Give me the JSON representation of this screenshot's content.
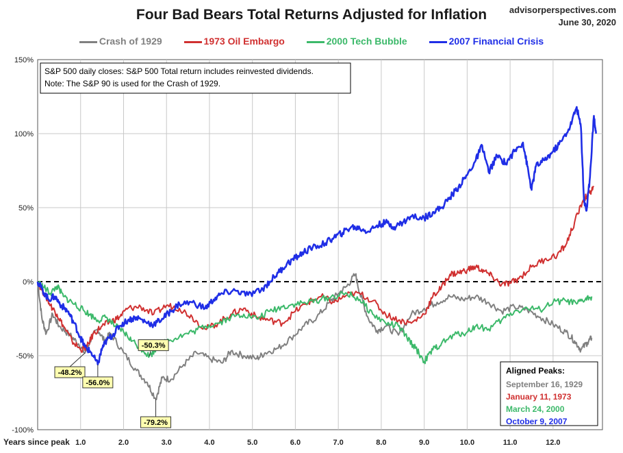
{
  "chart_data": {
    "type": "line",
    "title": "Four Bad Bears Total Returns Adjusted for Inflation",
    "source": "advisorperspectives.com",
    "date": "June 30, 2020",
    "xlabel": "Years since peak",
    "x_ticks": [
      "1.0",
      "2.0",
      "3.0",
      "4.0",
      "5.0",
      "6.0",
      "7.0",
      "8.0",
      "9.0",
      "10.0",
      "11.0",
      "12.0"
    ],
    "y_ticks": [
      "150%",
      "100%",
      "50%",
      "0%",
      "-50%",
      "-100%"
    ],
    "ylim": [
      -100,
      150
    ],
    "xlim": [
      0,
      13.15
    ],
    "note_lines": [
      "S&P 500 daily closes: S&P 500 Total return includes reinvested dividends.",
      "Note: The S&P 90 is used for the Crash of 1929."
    ],
    "aligned_peaks_title": "Aligned Peaks:",
    "series": [
      {
        "name": "Crash of 1929",
        "color": "#808080",
        "peak": "September 16, 1929",
        "points": [
          [
            0,
            0
          ],
          [
            0.1,
            -25
          ],
          [
            0.2,
            -35
          ],
          [
            0.35,
            -22
          ],
          [
            0.5,
            -30
          ],
          [
            0.75,
            -36
          ],
          [
            0.95,
            -42
          ],
          [
            1.1,
            -48.2
          ],
          [
            1.25,
            -38
          ],
          [
            1.4,
            -32
          ],
          [
            1.55,
            -40
          ],
          [
            1.7,
            -35
          ],
          [
            2.0,
            -48
          ],
          [
            2.3,
            -60
          ],
          [
            2.55,
            -68
          ],
          [
            2.75,
            -79.2
          ],
          [
            2.9,
            -65
          ],
          [
            3.1,
            -66
          ],
          [
            3.4,
            -56
          ],
          [
            3.7,
            -48
          ],
          [
            4.0,
            -52
          ],
          [
            4.3,
            -55
          ],
          [
            4.5,
            -47
          ],
          [
            4.8,
            -50
          ],
          [
            5.1,
            -52
          ],
          [
            5.3,
            -48
          ],
          [
            5.6,
            -45
          ],
          [
            5.9,
            -38
          ],
          [
            6.2,
            -30
          ],
          [
            6.5,
            -24
          ],
          [
            6.8,
            -14
          ],
          [
            7.0,
            -8
          ],
          [
            7.2,
            -3
          ],
          [
            7.4,
            5
          ],
          [
            7.5,
            -8
          ],
          [
            7.7,
            -25
          ],
          [
            7.9,
            -33
          ],
          [
            8.1,
            -30
          ],
          [
            8.4,
            -36
          ],
          [
            8.7,
            -22
          ],
          [
            9.0,
            -18
          ],
          [
            9.3,
            -14
          ],
          [
            9.6,
            -10
          ],
          [
            9.9,
            -12
          ],
          [
            10.2,
            -10
          ],
          [
            10.5,
            -14
          ],
          [
            10.8,
            -20
          ],
          [
            11.1,
            -17
          ],
          [
            11.4,
            -19
          ],
          [
            11.7,
            -24
          ],
          [
            12.0,
            -29
          ],
          [
            12.3,
            -34
          ],
          [
            12.5,
            -40
          ],
          [
            12.65,
            -46
          ],
          [
            12.8,
            -41
          ],
          [
            12.9,
            -38
          ]
        ]
      },
      {
        "name": "1973 Oil Embargo",
        "color": "#d03030",
        "peak": "January 11, 1973",
        "points": [
          [
            0,
            0
          ],
          [
            0.15,
            -8
          ],
          [
            0.3,
            -16
          ],
          [
            0.45,
            -22
          ],
          [
            0.6,
            -30
          ],
          [
            0.8,
            -40
          ],
          [
            1.0,
            -46
          ],
          [
            1.15,
            -44
          ],
          [
            1.3,
            -35
          ],
          [
            1.5,
            -30
          ],
          [
            1.7,
            -27
          ],
          [
            1.9,
            -24
          ],
          [
            2.1,
            -18
          ],
          [
            2.4,
            -17
          ],
          [
            2.7,
            -22
          ],
          [
            3.0,
            -16
          ],
          [
            3.3,
            -18
          ],
          [
            3.6,
            -24
          ],
          [
            3.9,
            -32
          ],
          [
            4.2,
            -28
          ],
          [
            4.5,
            -22
          ],
          [
            4.8,
            -18
          ],
          [
            5.1,
            -24
          ],
          [
            5.4,
            -26
          ],
          [
            5.7,
            -28
          ],
          [
            6.0,
            -20
          ],
          [
            6.3,
            -14
          ],
          [
            6.6,
            -10
          ],
          [
            6.9,
            -14
          ],
          [
            7.2,
            -9
          ],
          [
            7.5,
            -8
          ],
          [
            7.8,
            -13
          ],
          [
            8.1,
            -22
          ],
          [
            8.4,
            -26
          ],
          [
            8.7,
            -28
          ],
          [
            9.0,
            -22
          ],
          [
            9.2,
            -10
          ],
          [
            9.4,
            -4
          ],
          [
            9.6,
            5
          ],
          [
            9.8,
            6
          ],
          [
            10.0,
            8
          ],
          [
            10.2,
            10
          ],
          [
            10.4,
            7
          ],
          [
            10.6,
            3
          ],
          [
            10.8,
            -2
          ],
          [
            11.0,
            -1
          ],
          [
            11.2,
            2
          ],
          [
            11.5,
            10
          ],
          [
            11.8,
            15
          ],
          [
            12.1,
            18
          ],
          [
            12.3,
            25
          ],
          [
            12.5,
            40
          ],
          [
            12.7,
            55
          ],
          [
            12.85,
            60
          ],
          [
            12.95,
            64
          ]
        ]
      },
      {
        "name": "2000 Tech Bubble",
        "color": "#3cb96a",
        "peak": "March 24, 2000",
        "points": [
          [
            0,
            0
          ],
          [
            0.15,
            -4
          ],
          [
            0.3,
            -8
          ],
          [
            0.45,
            -3
          ],
          [
            0.6,
            -10
          ],
          [
            0.8,
            -14
          ],
          [
            1.0,
            -18
          ],
          [
            1.2,
            -22
          ],
          [
            1.4,
            -26
          ],
          [
            1.6,
            -24
          ],
          [
            1.8,
            -30
          ],
          [
            2.0,
            -34
          ],
          [
            2.2,
            -40
          ],
          [
            2.45,
            -46
          ],
          [
            2.6,
            -50.3
          ],
          [
            2.8,
            -44
          ],
          [
            3.0,
            -40
          ],
          [
            3.3,
            -37
          ],
          [
            3.6,
            -34
          ],
          [
            3.9,
            -30
          ],
          [
            4.2,
            -28
          ],
          [
            4.5,
            -24
          ],
          [
            4.8,
            -22
          ],
          [
            5.1,
            -25
          ],
          [
            5.4,
            -20
          ],
          [
            5.7,
            -17
          ],
          [
            6.0,
            -15
          ],
          [
            6.3,
            -14
          ],
          [
            6.6,
            -12
          ],
          [
            6.9,
            -10
          ],
          [
            7.2,
            -8
          ],
          [
            7.5,
            -12
          ],
          [
            7.8,
            -22
          ],
          [
            8.1,
            -28
          ],
          [
            8.4,
            -30
          ],
          [
            8.6,
            -38
          ],
          [
            8.8,
            -45
          ],
          [
            9.0,
            -54
          ],
          [
            9.2,
            -46
          ],
          [
            9.4,
            -42
          ],
          [
            9.7,
            -36
          ],
          [
            10.0,
            -34
          ],
          [
            10.2,
            -30
          ],
          [
            10.5,
            -32
          ],
          [
            10.8,
            -26
          ],
          [
            11.1,
            -20
          ],
          [
            11.4,
            -18
          ],
          [
            11.7,
            -19
          ],
          [
            12.0,
            -14
          ],
          [
            12.3,
            -13
          ],
          [
            12.55,
            -15
          ],
          [
            12.75,
            -12
          ],
          [
            12.9,
            -10
          ]
        ]
      },
      {
        "name": "2007 Financial Crisis",
        "color": "#1f2ee6",
        "peak": "October 9, 2007",
        "points": [
          [
            0,
            0
          ],
          [
            0.1,
            -5
          ],
          [
            0.25,
            -12
          ],
          [
            0.4,
            -10
          ],
          [
            0.55,
            -16
          ],
          [
            0.7,
            -20
          ],
          [
            0.85,
            -28
          ],
          [
            1.0,
            -38
          ],
          [
            1.1,
            -44
          ],
          [
            1.25,
            -48
          ],
          [
            1.4,
            -56.0
          ],
          [
            1.5,
            -45
          ],
          [
            1.6,
            -40
          ],
          [
            1.75,
            -36
          ],
          [
            1.9,
            -30
          ],
          [
            2.1,
            -26
          ],
          [
            2.3,
            -24
          ],
          [
            2.5,
            -27
          ],
          [
            2.7,
            -29
          ],
          [
            2.9,
            -25
          ],
          [
            3.1,
            -20
          ],
          [
            3.3,
            -15
          ],
          [
            3.6,
            -14
          ],
          [
            3.9,
            -18
          ],
          [
            4.1,
            -12
          ],
          [
            4.3,
            -8
          ],
          [
            4.6,
            -6
          ],
          [
            4.9,
            -9
          ],
          [
            5.2,
            -6
          ],
          [
            5.4,
            0
          ],
          [
            5.6,
            6
          ],
          [
            5.8,
            12
          ],
          [
            6.0,
            16
          ],
          [
            6.2,
            20
          ],
          [
            6.4,
            23
          ],
          [
            6.7,
            26
          ],
          [
            6.9,
            30
          ],
          [
            7.1,
            33
          ],
          [
            7.3,
            37
          ],
          [
            7.5,
            36
          ],
          [
            7.7,
            34
          ],
          [
            7.9,
            38
          ],
          [
            8.1,
            40
          ],
          [
            8.3,
            37
          ],
          [
            8.5,
            40
          ],
          [
            8.7,
            44
          ],
          [
            9.0,
            43
          ],
          [
            9.2,
            47
          ],
          [
            9.4,
            50
          ],
          [
            9.6,
            57
          ],
          [
            9.8,
            64
          ],
          [
            10.0,
            72
          ],
          [
            10.2,
            82
          ],
          [
            10.35,
            92
          ],
          [
            10.5,
            74
          ],
          [
            10.7,
            85
          ],
          [
            10.9,
            80
          ],
          [
            11.1,
            88
          ],
          [
            11.3,
            94
          ],
          [
            11.4,
            78
          ],
          [
            11.5,
            62
          ],
          [
            11.6,
            78
          ],
          [
            11.8,
            82
          ],
          [
            12.0,
            88
          ],
          [
            12.2,
            95
          ],
          [
            12.4,
            105
          ],
          [
            12.55,
            118
          ],
          [
            12.65,
            104
          ],
          [
            12.72,
            55
          ],
          [
            12.78,
            48
          ],
          [
            12.85,
            68
          ],
          [
            12.95,
            112
          ],
          [
            13.0,
            100
          ]
        ]
      }
    ],
    "annotations": [
      {
        "label": "-48.2%",
        "x": 1.1,
        "y": -48.2
      },
      {
        "label": "-56.0%",
        "x": 1.4,
        "y": -56.0
      },
      {
        "label": "-50.3%",
        "x": 2.6,
        "y": -50.3
      },
      {
        "label": "-79.2%",
        "x": 2.75,
        "y": -79.2
      }
    ]
  }
}
